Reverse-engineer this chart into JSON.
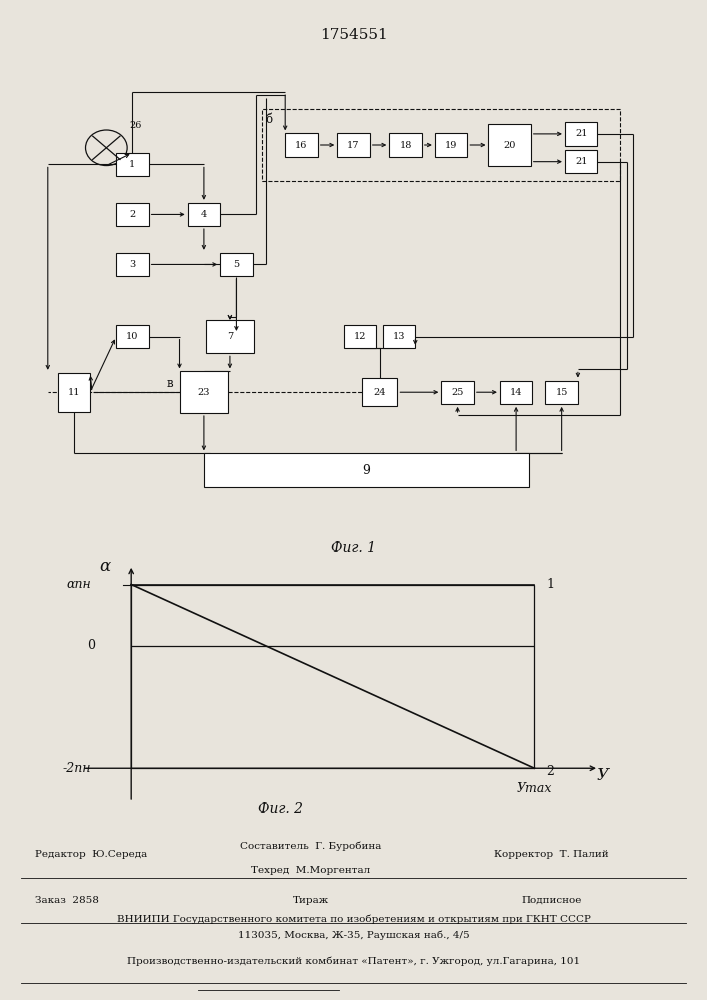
{
  "title": "1754551",
  "fig1_caption": "Фиг. 1",
  "fig2_caption": "Фиг. 2",
  "alpha_label": "α",
  "alpha_pn_label": "αпн",
  "minus2pn_label": "-2пн",
  "u_label": "У",
  "umax_label": "Уmax",
  "line1_label": "1",
  "line2_label": "2",
  "zero_label": "0",
  "b_label": "б",
  "v_label": "в",
  "editor_line": "Редактор  Ю.Середа",
  "compiler_line1": "Составитель  Г. Буробина",
  "techred_line": "Техред  М.Моргентал",
  "corrector_line": "Корректор  Т. Палий",
  "order_line": "Заказ  2858",
  "tiraz_line": "Тираж",
  "podpisnoe_line": "Подписное",
  "vniiipi_line": "ВНИИПИ Государственного комитета по изобретениям и открытиям при ГКНТ СССР",
  "address_line": "113035, Москва, Ж-35, Раушская наб., 4/5",
  "production_line": "Производственно-издательский комбинат «Патент», г. Ужгород, ул.Гагарина, 101",
  "bg_color": "#e8e4dc",
  "line_color": "#111111"
}
